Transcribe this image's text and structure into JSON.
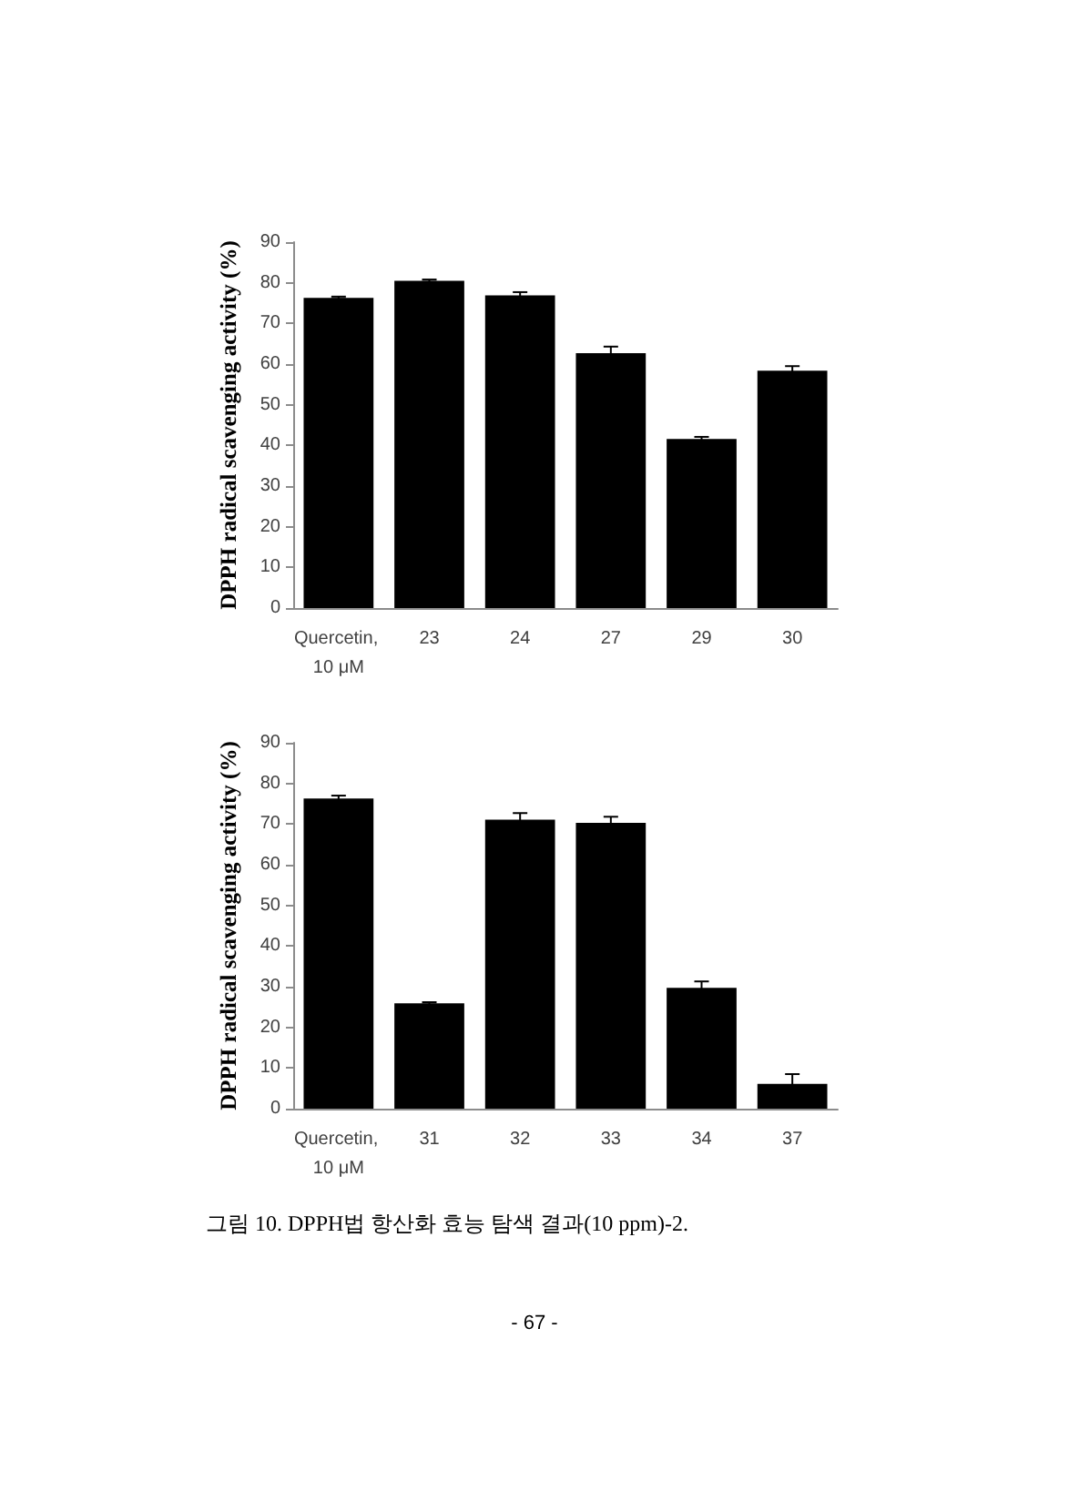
{
  "chart_data": [
    {
      "type": "bar",
      "ylabel": "DPPH radical scavenging activity (%)",
      "categories": [
        "Quercetin, 10 μM",
        "23",
        "24",
        "27",
        "29",
        "30"
      ],
      "values": [
        76.3,
        80.5,
        76.9,
        62.7,
        41.6,
        58.4
      ],
      "errors": [
        0.3,
        0.3,
        0.8,
        1.6,
        0.5,
        1.1
      ],
      "color": "#000000",
      "ylim": [
        0,
        90
      ],
      "yticks": [
        0,
        10,
        20,
        30,
        40,
        50,
        60,
        70,
        80,
        90
      ]
    },
    {
      "type": "bar",
      "ylabel": "DPPH radical scavenging activity (%)",
      "categories": [
        "Quercetin, 10 μM",
        "31",
        "32",
        "33",
        "34",
        "37"
      ],
      "values": [
        76.3,
        25.9,
        71.1,
        70.3,
        29.7,
        6.1
      ],
      "errors": [
        0.7,
        0.3,
        1.6,
        1.5,
        1.6,
        2.4
      ],
      "color": "#000000",
      "ylim": [
        0,
        90
      ],
      "yticks": [
        0,
        10,
        20,
        30,
        40,
        50,
        60,
        70,
        80,
        90
      ],
      "annotations": [
        "그림 10. DPPH법 항산화 효능 탐색 결과(10 ppm)-2.",
        "- 67 -"
      ]
    }
  ]
}
